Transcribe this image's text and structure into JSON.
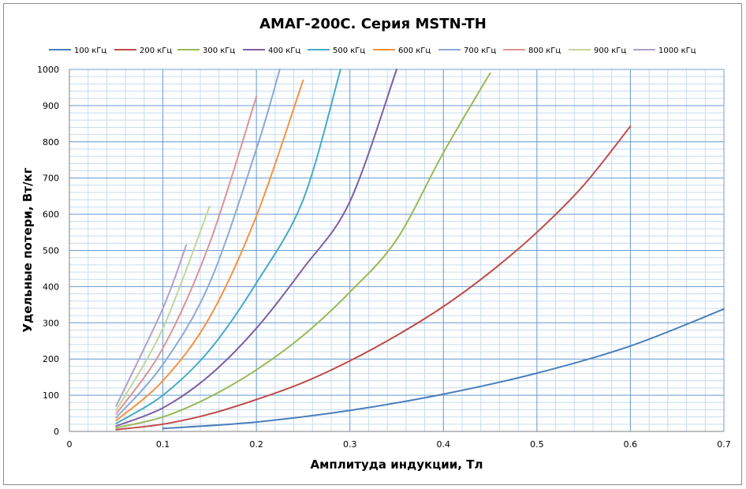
{
  "chart_data": {
    "type": "line",
    "title": "АМАГ-200С. Серия MSTN-TH",
    "xlabel": "Амплитуда индукции, Тл",
    "ylabel": "Удельные потери, Вт/кг",
    "xlim": [
      0,
      0.7
    ],
    "ylim": [
      0,
      1000
    ],
    "x_major_ticks": [
      0,
      0.1,
      0.2,
      0.3,
      0.4,
      0.5,
      0.6,
      0.7
    ],
    "x_tick_labels": [
      "0",
      "0.1",
      "0.2",
      "0.3",
      "0.4",
      "0.5",
      "0.6",
      "0.7"
    ],
    "y_major_ticks": [
      0,
      100,
      200,
      300,
      400,
      500,
      600,
      700,
      800,
      900,
      1000
    ],
    "y_tick_labels": [
      "0",
      "100",
      "200",
      "300",
      "400",
      "500",
      "600",
      "700",
      "800",
      "900",
      "1000"
    ],
    "x_minor_step": 0.02,
    "y_minor_step": 20,
    "grid": true,
    "legend_position": "top",
    "series": [
      {
        "name": "100 кГц",
        "color": "#4a7ebb",
        "x": [
          0.1,
          0.2,
          0.3,
          0.4,
          0.5,
          0.6,
          0.7
        ],
        "y": [
          8,
          26,
          58,
          103,
          161,
          236,
          338
        ]
      },
      {
        "name": "200 кГц",
        "color": "#be4b48",
        "x": [
          0.05,
          0.1,
          0.15,
          0.2,
          0.25,
          0.3,
          0.35,
          0.4,
          0.45,
          0.5,
          0.55,
          0.6
        ],
        "y": [
          5,
          20,
          48,
          88,
          135,
          195,
          265,
          345,
          440,
          550,
          680,
          843
        ]
      },
      {
        "name": "300 кГц",
        "color": "#98b954",
        "x": [
          0.05,
          0.1,
          0.15,
          0.2,
          0.25,
          0.3,
          0.35,
          0.4,
          0.45
        ],
        "y": [
          10,
          40,
          95,
          170,
          265,
          385,
          530,
          770,
          990
        ]
      },
      {
        "name": "400 кГц",
        "color": "#7d60a0",
        "x": [
          0.05,
          0.1,
          0.15,
          0.2,
          0.25,
          0.3,
          0.35
        ],
        "y": [
          15,
          65,
          155,
          285,
          450,
          635,
          1000
        ]
      },
      {
        "name": "500 кГц",
        "color": "#46aac5",
        "x": [
          0.05,
          0.1,
          0.15,
          0.2,
          0.25,
          0.29
        ],
        "y": [
          22,
          100,
          225,
          410,
          640,
          1000
        ]
      },
      {
        "name": "600 кГц",
        "color": "#f69240",
        "x": [
          0.05,
          0.1,
          0.15,
          0.2,
          0.25
        ],
        "y": [
          30,
          140,
          315,
          595,
          970
        ]
      },
      {
        "name": "700 кГц",
        "color": "#8da9d5",
        "x": [
          0.05,
          0.1,
          0.15,
          0.2,
          0.225
        ],
        "y": [
          38,
          185,
          410,
          780,
          1000
        ]
      },
      {
        "name": "800 кГц",
        "color": "#d99594",
        "x": [
          0.05,
          0.1,
          0.15,
          0.2
        ],
        "y": [
          48,
          230,
          520,
          925
        ]
      },
      {
        "name": "900 кГц",
        "color": "#c3d69b",
        "x": [
          0.05,
          0.1,
          0.15
        ],
        "y": [
          58,
          285,
          622
        ]
      },
      {
        "name": "1000 кГц",
        "color": "#b2a1c7",
        "x": [
          0.05,
          0.1,
          0.125
        ],
        "y": [
          70,
          340,
          515
        ]
      }
    ]
  }
}
